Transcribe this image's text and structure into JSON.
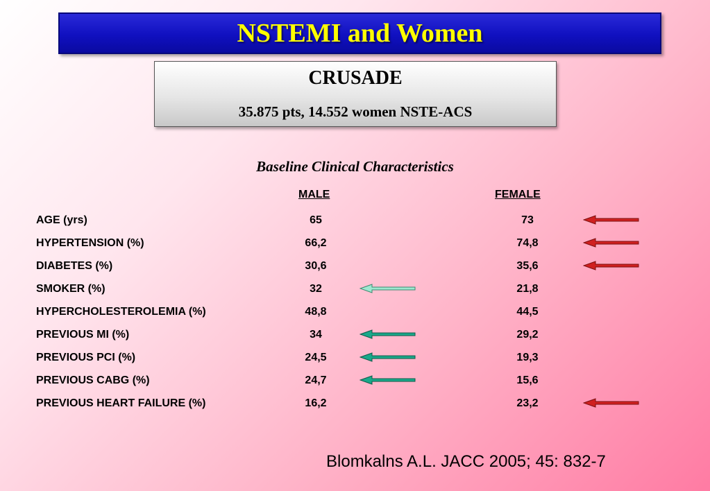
{
  "title": "NSTEMI and Women",
  "study": {
    "name": "CRUSADE",
    "subtitle": "35.875 pts, 14.552 women NSTE-ACS"
  },
  "section_title": "Baseline Clinical Characteristics",
  "columns": {
    "male": "MALE",
    "female": "FEMALE"
  },
  "arrow_colors": {
    "red": "#d02020",
    "green": "#1aa88a",
    "light_green": "#9ee8d0"
  },
  "rows": [
    {
      "label": "AGE (yrs)",
      "male": "65",
      "female": "73",
      "arrow": "female-higher",
      "arrow_icon": "left-arrow-red-icon"
    },
    {
      "label": "HYPERTENSION (%)",
      "male": "66,2",
      "female": "74,8",
      "arrow": "female-higher",
      "arrow_icon": "left-arrow-red-icon"
    },
    {
      "label": "DIABETES (%)",
      "male": "30,6",
      "female": "35,6",
      "arrow": "female-higher",
      "arrow_icon": "left-arrow-red-icon"
    },
    {
      "label": "SMOKER (%)",
      "male": "32",
      "female": "21,8",
      "arrow": "male-higher",
      "arrow_icon": "left-arrow-light-green-icon"
    },
    {
      "label": "HYPERCHOLESTEROLEMIA (%)",
      "male": "48,8",
      "female": "44,5",
      "arrow": "none",
      "arrow_icon": ""
    },
    {
      "label": "PREVIOUS MI (%)",
      "male": "34",
      "female": "29,2",
      "arrow": "male-higher",
      "arrow_icon": "left-arrow-green-icon"
    },
    {
      "label": "PREVIOUS PCI (%)",
      "male": "24,5",
      "female": "19,3",
      "arrow": "male-higher",
      "arrow_icon": "left-arrow-green-icon"
    },
    {
      "label": "PREVIOUS CABG (%)",
      "male": "24,7",
      "female": "15,6",
      "arrow": "male-higher",
      "arrow_icon": "left-arrow-green-icon"
    },
    {
      "label": "PREVIOUS HEART FAILURE (%)",
      "male": "16,2",
      "female": "23,2",
      "arrow": "female-higher",
      "arrow_icon": "left-arrow-red-icon"
    }
  ],
  "citation": "Blomkalns A.L. JACC 2005; 45: 832-7"
}
